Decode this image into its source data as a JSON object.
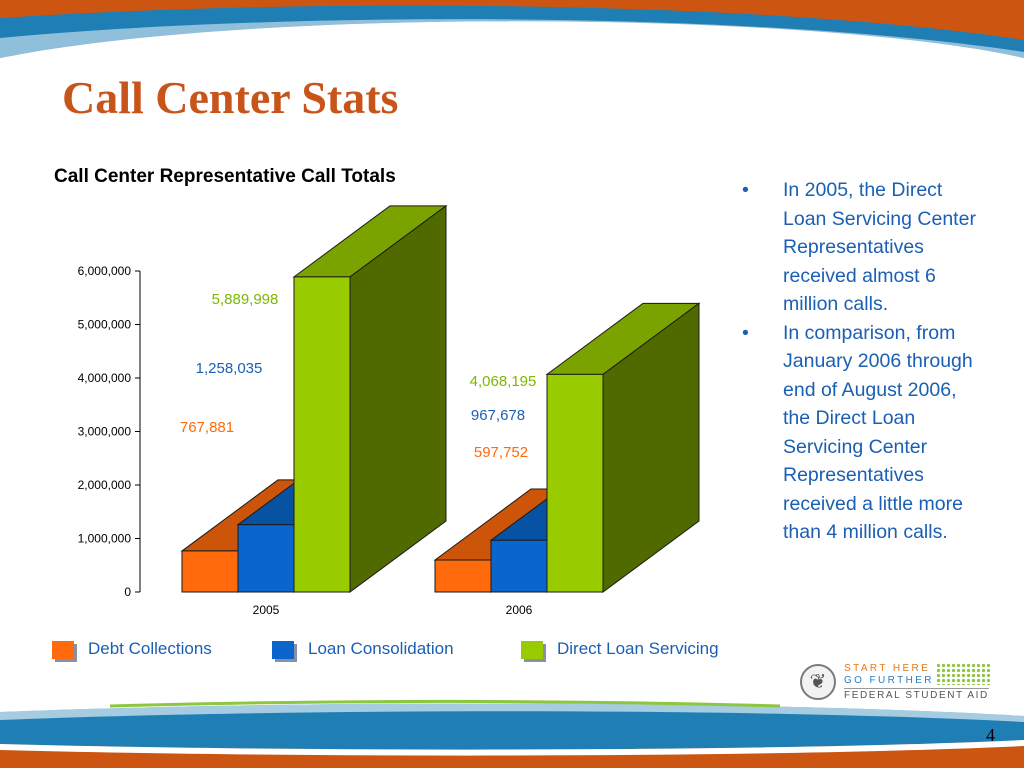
{
  "slide": {
    "title": "Call Center Stats",
    "page_number": "4",
    "colors": {
      "top_band": "#cc5511",
      "blue_band": "#1f7fb4",
      "title": "#c8541a",
      "bullet_text": "#1a5fb4"
    }
  },
  "chart_data": {
    "type": "bar",
    "style": "3d-grouped",
    "title": "Call Center Representative Call Totals",
    "categories": [
      "2005",
      "2006"
    ],
    "series": [
      {
        "name": "Debt Collections",
        "values": [
          767881,
          597752
        ],
        "labels": [
          "767,881",
          "597,752"
        ],
        "color": "#ff6a0d",
        "label_color": "#ff6a0d"
      },
      {
        "name": "Loan Consolidation",
        "values": [
          1258035,
          967678
        ],
        "labels": [
          "1,258,035",
          "967,678"
        ],
        "color": "#0a66cc",
        "label_color": "#1a5fb4"
      },
      {
        "name": "Direct Loan Servicing",
        "values": [
          5889998,
          4068195
        ],
        "labels": [
          "5,889,998",
          "4,068,195"
        ],
        "color": "#99cc00",
        "label_color": "#7ab800"
      }
    ],
    "y_ticks": [
      "0",
      "1,000,000",
      "2,000,000",
      "3,000,000",
      "4,000,000",
      "5,000,000",
      "6,000,000"
    ],
    "ylim": [
      0,
      6000000
    ],
    "grid": false,
    "legend_position": "bottom"
  },
  "bullets": [
    {
      "marker": "•",
      "text": "In 2005, the Direct Loan Servicing Center Representatives received almost 6 million calls."
    },
    {
      "marker": "•",
      "text": "In comparison, from January 2006 through end of August 2006, the Direct Loan Servicing Center Representatives received a little more than 4 million calls."
    }
  ],
  "logo": {
    "line1": "START HERE",
    "line2": "GO FURTHER",
    "line3": "FEDERAL STUDENT AID",
    "icons": [
      "seal-icon",
      "dot-grid-icon"
    ]
  }
}
